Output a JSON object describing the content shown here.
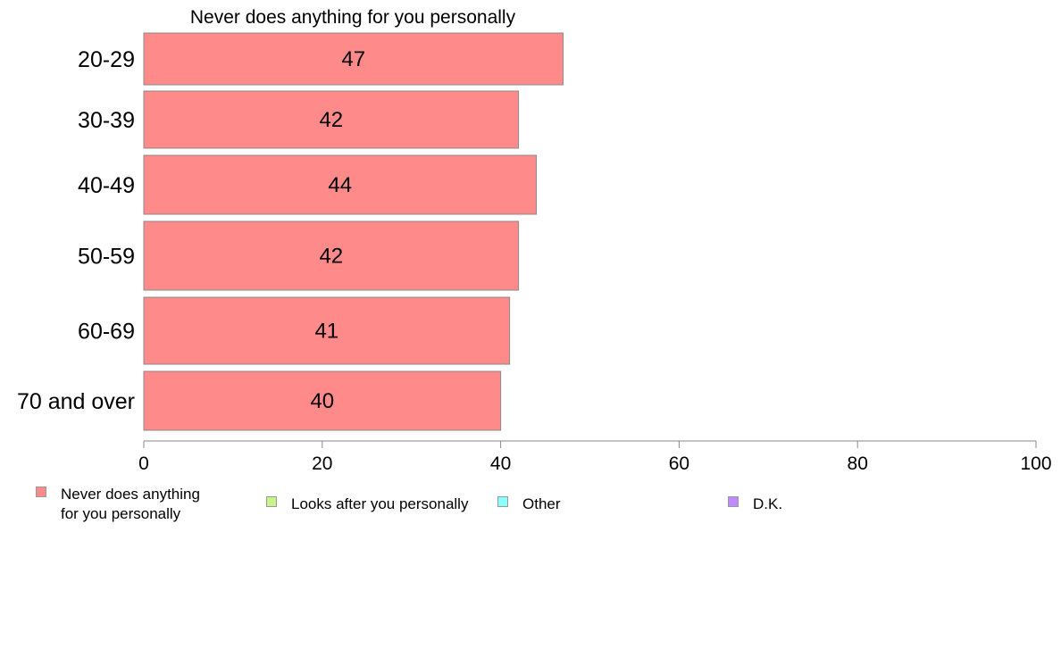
{
  "chart_data": {
    "type": "bar",
    "orientation": "horizontal",
    "title": "Never does anything for you personally",
    "categories": [
      "20-29",
      "30-39",
      "40-49",
      "50-59",
      "60-69",
      "70 and over"
    ],
    "series": [
      {
        "name": "Never does anything for you personally",
        "values": [
          47,
          42,
          44,
          42,
          41,
          40
        ],
        "labels": [
          "47",
          "42",
          "44",
          "42",
          "41",
          "40"
        ]
      }
    ],
    "xlim": [
      0,
      100
    ],
    "xticks": [
      "0",
      "20",
      "40",
      "60",
      "80",
      "100"
    ],
    "grid": false,
    "legend_position": "bottom"
  },
  "legend": {
    "items": [
      {
        "label": "Never does anything\nfor you personally",
        "color": "#ff8a8a"
      },
      {
        "label": "Looks after you personally",
        "color": "#c8f58a"
      },
      {
        "label": "Other",
        "color": "#8affff"
      },
      {
        "label": "D.K.",
        "color": "#c08aff"
      }
    ]
  },
  "colors": {
    "bar": "#ff8a8a",
    "bar_border": "#8a8a8a",
    "axis": "#888888"
  }
}
